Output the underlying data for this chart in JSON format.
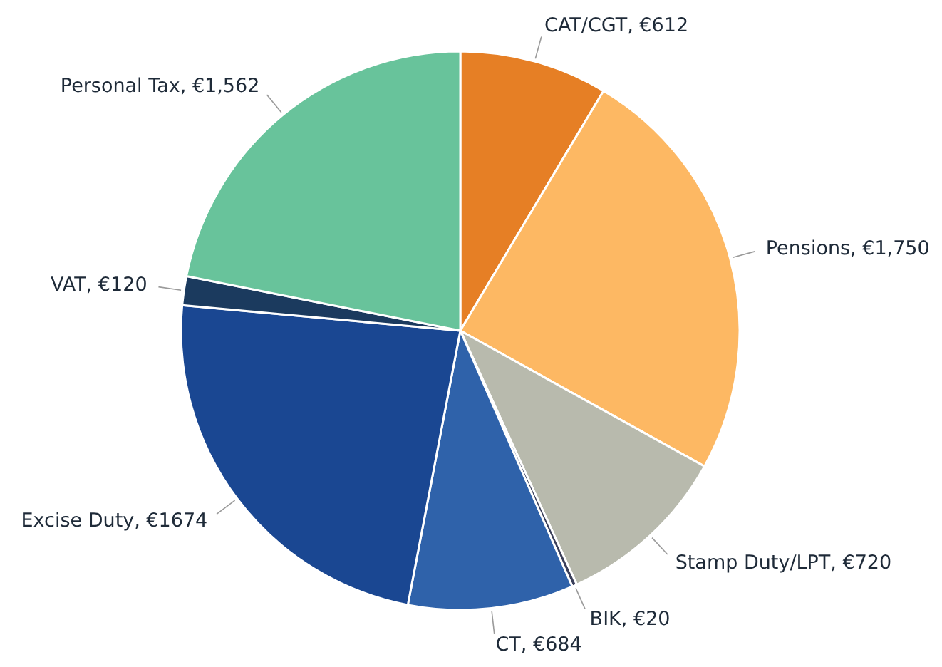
{
  "chart_data": {
    "type": "pie",
    "categories": [
      "CAT/CGT",
      "Pensions",
      "Stamp Duty/LPT",
      "BIK",
      "CT",
      "Excise Duty",
      "VAT",
      "Personal Tax"
    ],
    "values": [
      612,
      1750,
      720,
      20,
      684,
      1674,
      120,
      1562
    ],
    "value_labels": [
      "€612",
      "€1,750",
      "€720",
      "€20",
      "€684",
      "€1674",
      "€120",
      "€1,562"
    ],
    "colors": [
      "#e67f25",
      "#fdb863",
      "#b8baad",
      "#3a3f5a",
      "#2f62aa",
      "#1a4792",
      "#1b3a5e",
      "#68c39b"
    ]
  }
}
